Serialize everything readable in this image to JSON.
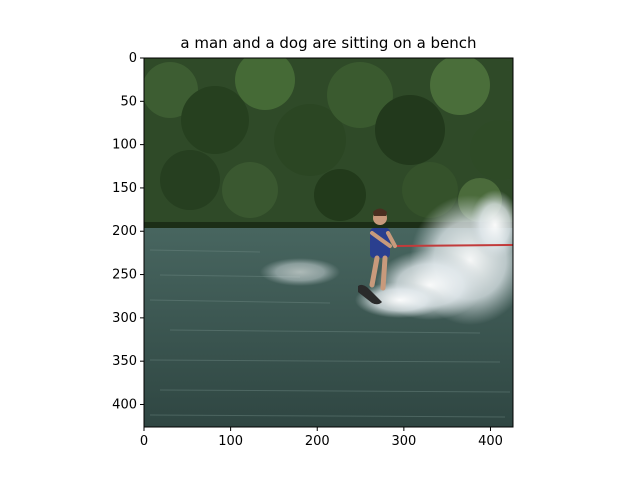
{
  "title": "a man and a dog are sitting on a bench",
  "axes": {
    "x": {
      "min": 0,
      "max": 426,
      "ticks": [
        0,
        100,
        200,
        300,
        400
      ]
    },
    "y": {
      "min": 0,
      "max": 426,
      "ticks": [
        0,
        50,
        100,
        150,
        200,
        250,
        300,
        350,
        400
      ],
      "inverted": true
    }
  },
  "image": {
    "scene": "water skier on a lake with splashing spray and forested shore in background"
  },
  "colors": {
    "forest": "#2f4a28",
    "forest_dark": "#1c2e17",
    "water": "#3f5a55",
    "water_dark": "#2f4642",
    "spray": "#e9eef1",
    "skier_vest": "#2a3f8f",
    "skin": "#c89a7c",
    "rope": "#c23b3b",
    "ski": "#2a2a2a"
  }
}
